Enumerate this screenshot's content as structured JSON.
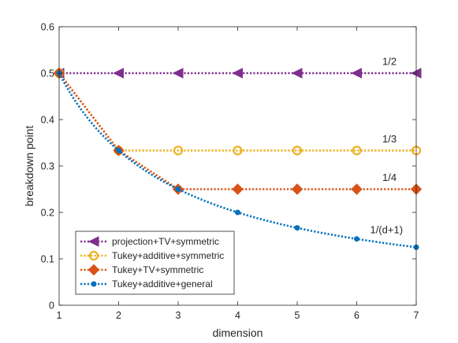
{
  "chart_data": {
    "type": "line",
    "xlabel": "dimension",
    "ylabel": "breakdown point",
    "xlim": [
      1,
      7
    ],
    "ylim": [
      0,
      0.6
    ],
    "x_ticks": [
      1,
      2,
      3,
      4,
      5,
      6,
      7
    ],
    "y_ticks": [
      0,
      0.1,
      0.2,
      0.3,
      0.4,
      0.5,
      0.6
    ],
    "x_tick_labels": [
      "1",
      "2",
      "3",
      "4",
      "5",
      "6",
      "7"
    ],
    "y_tick_labels": [
      "0",
      "0.1",
      "0.2",
      "0.3",
      "0.4",
      "0.5",
      "0.6"
    ],
    "grid": false,
    "legend_position": "bottom-left",
    "series": [
      {
        "name": "projection+TV+symmetric",
        "color": "#7E2F8E",
        "marker": "triangle-left",
        "line_style": "dotted",
        "x": [
          1,
          2,
          3,
          4,
          5,
          6,
          7
        ],
        "y": [
          0.5,
          0.5,
          0.5,
          0.5,
          0.5,
          0.5,
          0.5
        ]
      },
      {
        "name": "Tukey+additive+symmetric",
        "color": "#EDB120",
        "marker": "circle-open",
        "line_style": "dotted",
        "x": [
          1,
          2,
          3,
          4,
          5,
          6,
          7
        ],
        "y": [
          0.5,
          0.3333,
          0.3333,
          0.3333,
          0.3333,
          0.3333,
          0.3333
        ]
      },
      {
        "name": "Tukey+TV+symmetric",
        "color": "#D95319",
        "marker": "diamond",
        "line_style": "dotted",
        "x": [
          1,
          2,
          3,
          4,
          5,
          6,
          7
        ],
        "y": [
          0.5,
          0.3333,
          0.25,
          0.25,
          0.25,
          0.25,
          0.25
        ]
      },
      {
        "name": "Tukey+additive+general",
        "color": "#0072BD",
        "marker": "point",
        "line_style": "dotted",
        "x": [
          1,
          2,
          3,
          4,
          5,
          6,
          7
        ],
        "y": [
          0.5,
          0.3333,
          0.25,
          0.2,
          0.1667,
          0.1429,
          0.125
        ]
      }
    ],
    "annotations": [
      {
        "text": "1/2",
        "x": 6.55,
        "y": 0.525
      },
      {
        "text": "1/3",
        "x": 6.55,
        "y": 0.358
      },
      {
        "text": "1/4",
        "x": 6.55,
        "y": 0.275
      },
      {
        "text": "1/(d+1)",
        "x": 6.5,
        "y": 0.162
      }
    ]
  }
}
